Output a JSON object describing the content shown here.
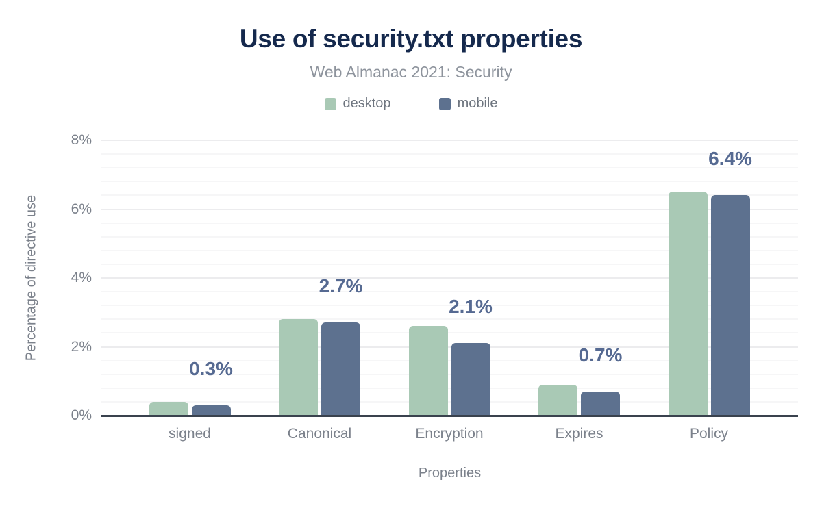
{
  "title": "Use of security.txt properties",
  "subtitle": "Web Almanac 2021: Security",
  "legend": [
    {
      "label": "desktop",
      "color": "#a9c9b5"
    },
    {
      "label": "mobile",
      "color": "#5d718f"
    }
  ],
  "y_axis_title": "Percentage of directive use",
  "x_axis_title": "Properties",
  "chart_data": {
    "type": "bar",
    "title": "Use of security.txt properties",
    "subtitle": "Web Almanac 2021: Security",
    "categories": [
      "signed",
      "Canonical",
      "Encryption",
      "Expires",
      "Policy"
    ],
    "series": [
      {
        "name": "desktop",
        "color": "#a9c9b5",
        "values": [
          0.4,
          2.8,
          2.6,
          0.9,
          6.5
        ]
      },
      {
        "name": "mobile",
        "color": "#5d718f",
        "values": [
          0.3,
          2.7,
          2.1,
          0.7,
          6.4
        ]
      }
    ],
    "annotations": {
      "series": "mobile",
      "labels": [
        "0.3%",
        "2.7%",
        "2.1%",
        "0.7%",
        "6.4%"
      ],
      "color": "#566a92"
    },
    "xlabel": "Properties",
    "ylabel": "Percentage of directive use",
    "ylim": [
      0,
      8
    ],
    "yticks": [
      "0%",
      "2%",
      "4%",
      "6%",
      "8%"
    ],
    "grid": {
      "major_step": 2,
      "minor_step": 0.4
    },
    "legend_position": "top",
    "colors": {
      "title": "#15294d",
      "subtitle": "#8e949d",
      "axis_text": "#7b818b",
      "axis_line": "#3a424e",
      "annotation": "#566a92"
    }
  }
}
